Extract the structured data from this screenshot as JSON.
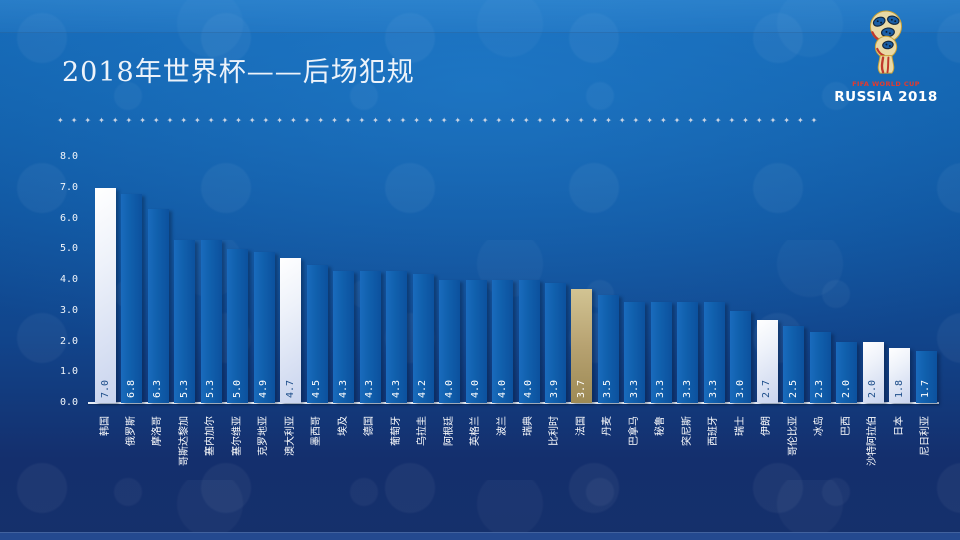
{
  "title": "2018年世界杯——后场犯规",
  "logo": {
    "line1": "FIFA WORLD CUP",
    "line2": "RUSSIA 2018"
  },
  "separator": {
    "glyph": "✦",
    "count": 56
  },
  "chart_data": {
    "type": "bar",
    "title": "2018年世界杯——后场犯规",
    "categories": [
      "韩国",
      "俄罗斯",
      "摩洛哥",
      "哥斯达黎加",
      "塞内加尔",
      "塞尔维亚",
      "克罗地亚",
      "澳大利亚",
      "墨西哥",
      "埃及",
      "德国",
      "葡萄牙",
      "乌拉圭",
      "阿根廷",
      "英格兰",
      "波兰",
      "瑞典",
      "比利时",
      "法国",
      "丹麦",
      "巴拿马",
      "秘鲁",
      "突尼斯",
      "西班牙",
      "瑞士",
      "伊朗",
      "哥伦比亚",
      "冰岛",
      "巴西",
      "沙特阿拉伯",
      "日本",
      "尼日利亚"
    ],
    "values": [
      7.0,
      6.8,
      6.3,
      5.3,
      5.3,
      5.0,
      4.9,
      4.7,
      4.5,
      4.3,
      4.3,
      4.3,
      4.2,
      4.0,
      4.0,
      4.0,
      4.0,
      3.9,
      3.7,
      3.5,
      3.3,
      3.3,
      3.3,
      3.3,
      3.0,
      2.7,
      2.5,
      2.3,
      2.0,
      2.0,
      1.8,
      1.7
    ],
    "bar_styles": [
      "light",
      "dark",
      "dark",
      "dark",
      "dark",
      "dark",
      "dark",
      "light",
      "dark",
      "dark",
      "dark",
      "dark",
      "dark",
      "dark",
      "dark",
      "dark",
      "dark",
      "dark",
      "gold",
      "dark",
      "dark",
      "dark",
      "dark",
      "dark",
      "dark",
      "light",
      "dark",
      "dark",
      "dark",
      "light",
      "light",
      "dark"
    ],
    "yticks": [
      "0.0",
      "1.0",
      "2.0",
      "3.0",
      "4.0",
      "5.0",
      "6.0",
      "7.0",
      "8.0"
    ],
    "ylim": [
      0,
      8
    ],
    "grid": false,
    "legend": "none",
    "label_rotation_deg": -90,
    "colors": {
      "bar_dark": "#0f5aa8",
      "bar_light": "#dde5f5",
      "bar_gold": "#b7a271",
      "value_label_on_dark": "#ffffff",
      "value_label_on_light": "#1e4e8a",
      "axis": "#e6edf6",
      "background_top": "#1568b6",
      "background_bottom": "#15306b"
    }
  }
}
